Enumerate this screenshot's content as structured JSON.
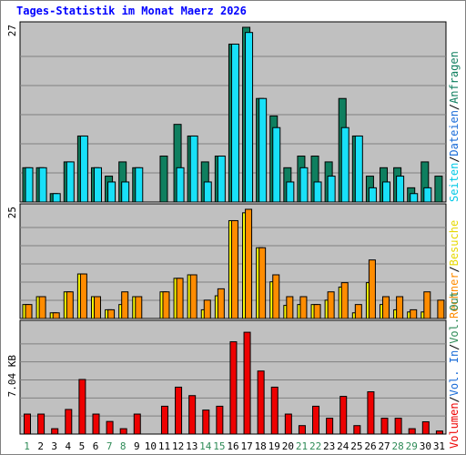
{
  "title": "Tages-Statistik im Monat Maerz 2026",
  "colors": {
    "background": "#ffffff",
    "title": "#0000ff",
    "panel": "#c0c0c0",
    "grid": "#808080",
    "hits": "#0f7f5f",
    "files": "#18e0f8",
    "pages": "#18e0f8",
    "visits": "#ffff00",
    "sites": "#ff8c00",
    "kbytes": "#ee0000",
    "weekend_label": "#2e8b57",
    "weekday_label": "#000000",
    "sep": "#000000"
  },
  "right_label": {
    "top": [
      {
        "text": "Anfragen",
        "color": "#0f7f5f"
      },
      {
        "text": "Dateien",
        "color": "#1a6cd8"
      },
      {
        "text": "Seiten",
        "color": "#00c8e6"
      }
    ],
    "middle": [
      {
        "text": "Besuche",
        "color": "#e6d800"
      },
      {
        "text": "Rechner",
        "color": "#ff8c00"
      }
    ],
    "bottom": [
      {
        "text": "Vol. Out",
        "color": "#2e8b57"
      },
      {
        "text": "Vol. In",
        "color": "#1a6cd8"
      },
      {
        "text": "Volumen",
        "color": "#ee0000"
      }
    ]
  },
  "chart_data": {
    "type": "bar",
    "title": "Tages-Statistik im Monat Maerz 2026",
    "categories": [
      "1",
      "2",
      "3",
      "4",
      "5",
      "6",
      "7",
      "8",
      "9",
      "10",
      "11",
      "12",
      "13",
      "14",
      "15",
      "16",
      "17",
      "18",
      "19",
      "20",
      "21",
      "22",
      "23",
      "24",
      "25",
      "26",
      "27",
      "28",
      "29",
      "30",
      "31"
    ],
    "weekend_days": [
      "1",
      "7",
      "8",
      "14",
      "15",
      "21",
      "22",
      "28",
      "29"
    ],
    "panels": [
      {
        "name": "Anfragen / Dateien / Seiten",
        "max_label": "27",
        "ylim": [
          0,
          27
        ],
        "series": [
          {
            "name": "Anfragen",
            "values": [
              5.3,
              5.3,
              1.3,
              6.2,
              10.2,
              5.3,
              4.0,
              6.2,
              5.3,
              0,
              7.1,
              12.0,
              10.2,
              6.2,
              7.1,
              24.4,
              27.0,
              16.0,
              13.3,
              5.3,
              7.1,
              7.1,
              6.2,
              16.0,
              10.2,
              4.0,
              5.3,
              5.3,
              2.2,
              6.2,
              4.0
            ]
          },
          {
            "name": "Dateien",
            "values": [
              5.3,
              5.3,
              1.3,
              6.2,
              10.2,
              5.3,
              3.1,
              3.1,
              5.3,
              0,
              0,
              5.3,
              10.2,
              3.1,
              7.1,
              24.4,
              26.2,
              16.0,
              11.5,
              3.1,
              5.3,
              3.1,
              4.0,
              11.5,
              10.2,
              2.2,
              3.1,
              4.0,
              1.3,
              2.2,
              0
            ]
          }
        ]
      },
      {
        "name": "Besuche / Rechner",
        "max_label": "25",
        "ylim": [
          0,
          25
        ],
        "series": [
          {
            "name": "Besuche",
            "values": [
              3.2,
              5.0,
              1.3,
              6.1,
              10.2,
              5.0,
              2.0,
              3.2,
              5.0,
              0,
              6.1,
              9.2,
              10.0,
              2.0,
              5.2,
              22.4,
              24.2,
              16.2,
              8.4,
              3.0,
              3.2,
              3.2,
              4.2,
              7.2,
              1.3,
              8.2,
              3.2,
              2.0,
              1.5,
              1.5,
              0
            ]
          },
          {
            "name": "Rechner",
            "values": [
              3.2,
              5.0,
              1.3,
              6.1,
              10.2,
              5.0,
              2.0,
              6.1,
              5.0,
              0,
              6.1,
              9.2,
              10.0,
              4.2,
              6.8,
              22.4,
              25.0,
              16.2,
              10.0,
              5.0,
              5.0,
              3.2,
              6.1,
              8.2,
              3.2,
              13.4,
              5.0,
              5.0,
              2.0,
              6.1,
              4.2
            ]
          }
        ]
      },
      {
        "name": "Volumen",
        "max_label": "7.04 KB",
        "ylim": [
          0,
          7.04
        ],
        "series": [
          {
            "name": "Volumen",
            "values": [
              1.3,
              1.3,
              0.35,
              1.6,
              3.55,
              1.3,
              0.82,
              0.35,
              1.3,
              0,
              1.81,
              3.05,
              2.5,
              1.56,
              1.81,
              6.0,
              6.62,
              4.1,
              3.05,
              1.3,
              0.55,
              1.81,
              1.03,
              2.45,
              0.55,
              2.75,
              1.03,
              1.03,
              0.35,
              0.8,
              0.2
            ]
          }
        ]
      }
    ]
  }
}
